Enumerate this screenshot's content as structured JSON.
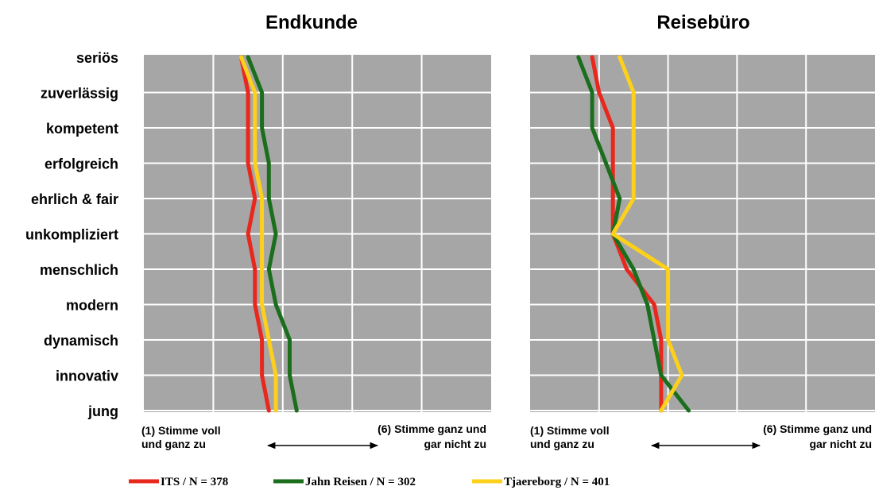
{
  "chart_data": {
    "type": "line",
    "categories": [
      "seriös",
      "zuverlässig",
      "kompetent",
      "erfolgreich",
      "ehrlich & fair",
      "unkompliziert",
      "menschlich",
      "modern",
      "dynamisch",
      "innovativ",
      "jung"
    ],
    "xlim": [
      1,
      6
    ],
    "scale_left": [
      "(1) Stimme voll",
      "und ganz zu"
    ],
    "scale_right": [
      "(6) Stimme ganz und",
      "gar nicht zu"
    ],
    "grid": true,
    "legend_position": "bottom",
    "legend": [
      "ITS / N = 378",
      "Jahn Reisen / N = 302",
      "Tjaereborg / N = 401"
    ],
    "colors": [
      "#e8271d",
      "#1a6e1c",
      "#fdd01c"
    ],
    "panels": [
      {
        "title": "Endkunde",
        "series": [
          {
            "name": "ITS / N = 378",
            "values": [
              2.4,
              2.5,
              2.5,
              2.5,
              2.6,
              2.5,
              2.6,
              2.6,
              2.7,
              2.7,
              2.8
            ]
          },
          {
            "name": "Jahn Reisen / N = 302",
            "values": [
              2.5,
              2.7,
              2.7,
              2.8,
              2.8,
              2.9,
              2.8,
              2.9,
              3.1,
              3.1,
              3.2
            ]
          },
          {
            "name": "Tjaereborg / N = 401",
            "values": [
              2.4,
              2.6,
              2.6,
              2.6,
              2.7,
              2.7,
              2.7,
              2.7,
              2.8,
              2.9,
              2.9
            ]
          }
        ]
      },
      {
        "title": "Reisebüro",
        "series": [
          {
            "name": "ITS / N = 378",
            "values": [
              1.9,
              2.0,
              2.2,
              2.2,
              2.2,
              2.2,
              2.4,
              2.8,
              2.9,
              2.9,
              2.9
            ]
          },
          {
            "name": "Jahn Reisen / N = 302",
            "values": [
              1.7,
              1.9,
              1.9,
              2.1,
              2.3,
              2.2,
              2.5,
              2.7,
              2.8,
              2.9,
              3.3
            ]
          },
          {
            "name": "Tjaereborg / N = 401",
            "values": [
              2.3,
              2.5,
              2.5,
              2.5,
              2.5,
              2.2,
              3.0,
              3.0,
              3.0,
              3.2,
              2.9
            ]
          }
        ]
      }
    ]
  }
}
